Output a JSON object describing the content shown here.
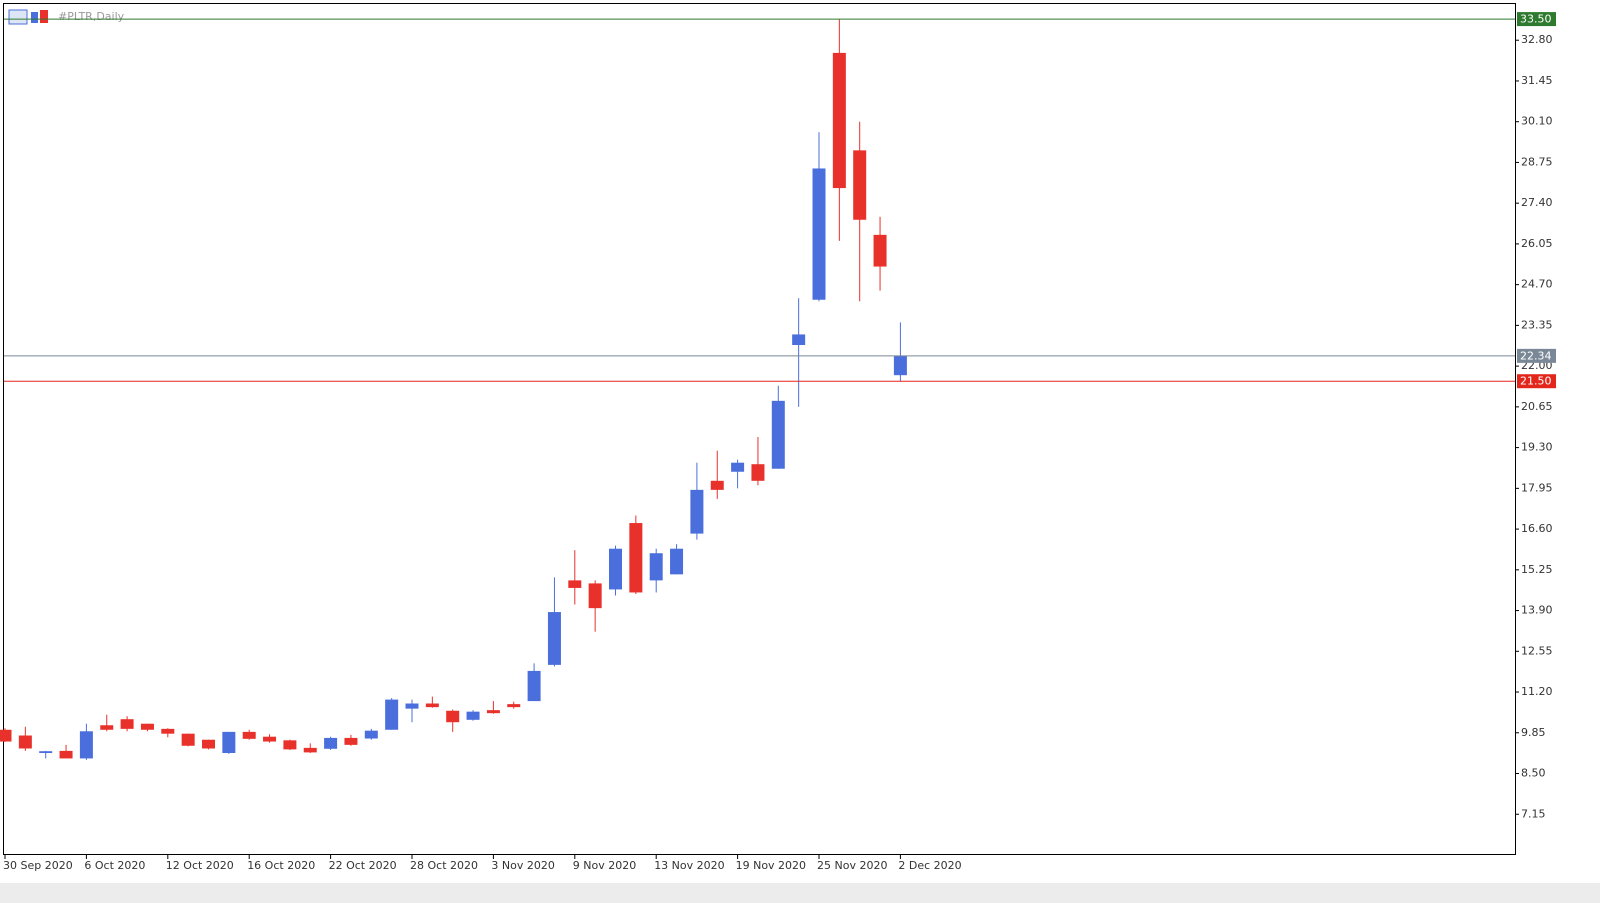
{
  "chart_data": {
    "type": "candlestick",
    "title": "#PLTR,Daily",
    "categories": [
      "30 Sep 2020",
      null,
      null,
      null,
      "6 Oct 2020",
      null,
      null,
      null,
      "12 Oct 2020",
      null,
      null,
      null,
      "16 Oct 2020",
      null,
      null,
      null,
      "22 Oct 2020",
      null,
      null,
      null,
      "28 Oct 2020",
      null,
      null,
      null,
      "3 Nov 2020",
      null,
      null,
      null,
      "9 Nov 2020",
      null,
      null,
      null,
      "13 Nov 2020",
      null,
      null,
      null,
      "19 Nov 2020",
      null,
      null,
      null,
      "25 Nov 2020",
      null,
      null,
      null,
      "2 Dec 2020"
    ],
    "open": [
      9.95,
      9.76,
      9.18,
      9.25,
      9.0,
      10.1,
      10.3,
      10.15,
      9.98,
      9.82,
      9.62,
      9.18,
      9.88,
      9.72,
      9.6,
      9.35,
      9.32,
      9.68,
      9.66,
      9.95,
      10.65,
      10.82,
      10.58,
      10.28,
      10.6,
      10.8,
      10.9,
      12.1,
      14.9,
      14.8,
      14.6,
      16.8,
      14.9,
      15.1,
      16.45,
      18.2,
      18.5,
      18.75,
      18.6,
      22.7,
      24.2,
      32.38,
      29.15,
      26.35,
      21.7
    ],
    "high": [
      10.0,
      10.05,
      9.25,
      9.45,
      10.15,
      10.45,
      10.4,
      10.15,
      10.0,
      9.82,
      9.62,
      9.88,
      9.95,
      9.8,
      9.62,
      9.5,
      9.72,
      9.78,
      9.98,
      11.0,
      10.95,
      11.05,
      10.62,
      10.6,
      10.9,
      10.88,
      12.15,
      15.0,
      15.9,
      14.9,
      16.05,
      17.05,
      15.95,
      16.1,
      18.8,
      19.2,
      18.9,
      19.65,
      21.35,
      24.25,
      29.75,
      33.5,
      30.1,
      26.95,
      23.45
    ],
    "low": [
      9.55,
      9.25,
      9.0,
      9.0,
      8.95,
      9.9,
      9.9,
      9.9,
      9.7,
      9.4,
      9.3,
      9.15,
      9.62,
      9.52,
      9.28,
      9.18,
      9.28,
      9.42,
      9.62,
      9.95,
      10.2,
      10.68,
      9.88,
      10.25,
      10.48,
      10.65,
      10.9,
      12.05,
      14.1,
      13.2,
      14.4,
      14.45,
      14.5,
      15.1,
      16.25,
      17.6,
      17.95,
      18.05,
      18.6,
      20.65,
      24.15,
      26.15,
      24.15,
      24.5,
      21.5
    ],
    "close": [
      9.56,
      9.33,
      9.24,
      9.0,
      9.9,
      9.95,
      9.98,
      9.95,
      9.82,
      9.42,
      9.33,
      9.88,
      9.65,
      9.56,
      9.3,
      9.2,
      9.68,
      9.45,
      9.92,
      10.95,
      10.82,
      10.7,
      10.2,
      10.55,
      10.5,
      10.7,
      11.9,
      13.85,
      14.65,
      13.98,
      15.95,
      14.5,
      15.8,
      15.95,
      17.9,
      17.9,
      18.8,
      18.2,
      20.85,
      23.05,
      28.55,
      27.9,
      26.85,
      25.3,
      22.34
    ],
    "up_color": "#4a6fdc",
    "down_color": "#e8312a",
    "ylim": [
      5.8,
      34.0
    ],
    "yticks": [
      7.15,
      {
        "value": 8.5,
        "label": "8.50"
      },
      9.85,
      {
        "value": 11.2,
        "label": "11.20"
      },
      12.55,
      {
        "value": 13.9,
        "label": "13.90"
      },
      15.25,
      {
        "value": 16.6,
        "label": "16.60"
      },
      17.95,
      {
        "value": 19.3,
        "label": "19.30"
      },
      20.65,
      {
        "value": 22,
        "label": "22.00"
      },
      23.35,
      {
        "value": 24.7,
        "label": "24.70"
      },
      26.05,
      {
        "value": 27.4,
        "label": "27.40"
      },
      28.75,
      {
        "value": 30.1,
        "label": "30.10"
      },
      31.45,
      {
        "value": 32.8,
        "label": "32.80"
      }
    ],
    "lines": [
      {
        "value": 33.5,
        "label": "33.50",
        "color": "#2e7a2e"
      },
      {
        "value": 22.34,
        "color": "#7a8796"
      },
      {
        "value": 21.5,
        "label": "21.50",
        "color": "#e3261b"
      }
    ]
  }
}
